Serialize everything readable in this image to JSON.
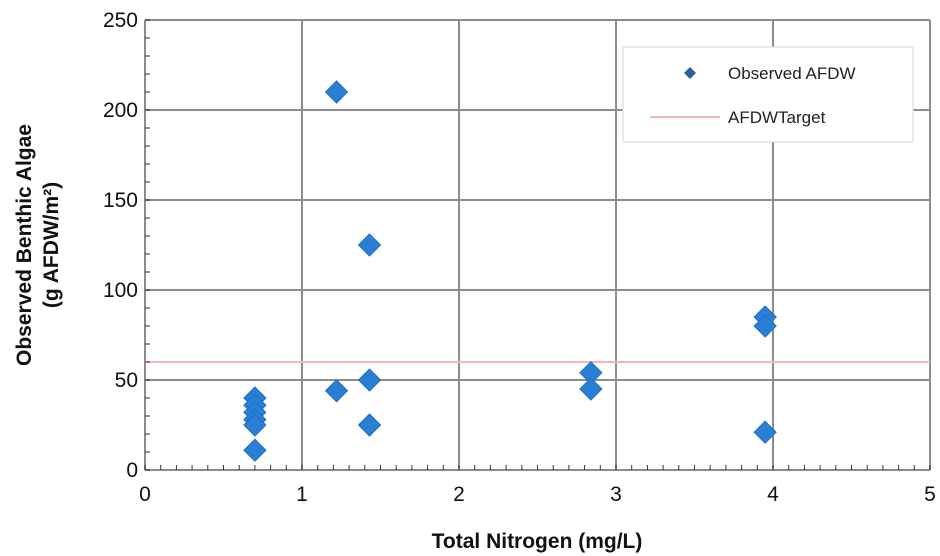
{
  "chart_data": {
    "type": "scatter",
    "title": "",
    "xlabel": "Total Nitrogen (mg/L)",
    "ylabel_line1": "Observed Benthic Algae",
    "ylabel_line2": "(g AFDW/m²)",
    "xlim": [
      0,
      5
    ],
    "ylim": [
      0,
      250
    ],
    "x_ticks": [
      "0",
      "1",
      "2",
      "3",
      "4",
      "5"
    ],
    "y_ticks": [
      "0",
      "50",
      "100",
      "150",
      "200",
      "250"
    ],
    "grid": true,
    "legend_position": "top-right",
    "series": [
      {
        "name": "Observed AFDW",
        "marker": "diamond",
        "color": "#2a7fd4",
        "points": [
          {
            "x": 0.7,
            "y": 40
          },
          {
            "x": 0.7,
            "y": 36
          },
          {
            "x": 0.7,
            "y": 32
          },
          {
            "x": 0.7,
            "y": 28
          },
          {
            "x": 0.7,
            "y": 25
          },
          {
            "x": 0.7,
            "y": 11
          },
          {
            "x": 1.22,
            "y": 210
          },
          {
            "x": 1.22,
            "y": 44
          },
          {
            "x": 1.43,
            "y": 125
          },
          {
            "x": 1.43,
            "y": 50
          },
          {
            "x": 1.43,
            "y": 25
          },
          {
            "x": 2.84,
            "y": 54
          },
          {
            "x": 2.84,
            "y": 45
          },
          {
            "x": 3.95,
            "y": 85
          },
          {
            "x": 3.95,
            "y": 80
          },
          {
            "x": 3.95,
            "y": 21
          }
        ]
      },
      {
        "name": "AFDW Target",
        "type": "line",
        "color": "#f0b8b0",
        "y": 60
      }
    ],
    "legend": {
      "observed_label": "Observed AFDW",
      "target_label": "AFDWTarget"
    }
  }
}
